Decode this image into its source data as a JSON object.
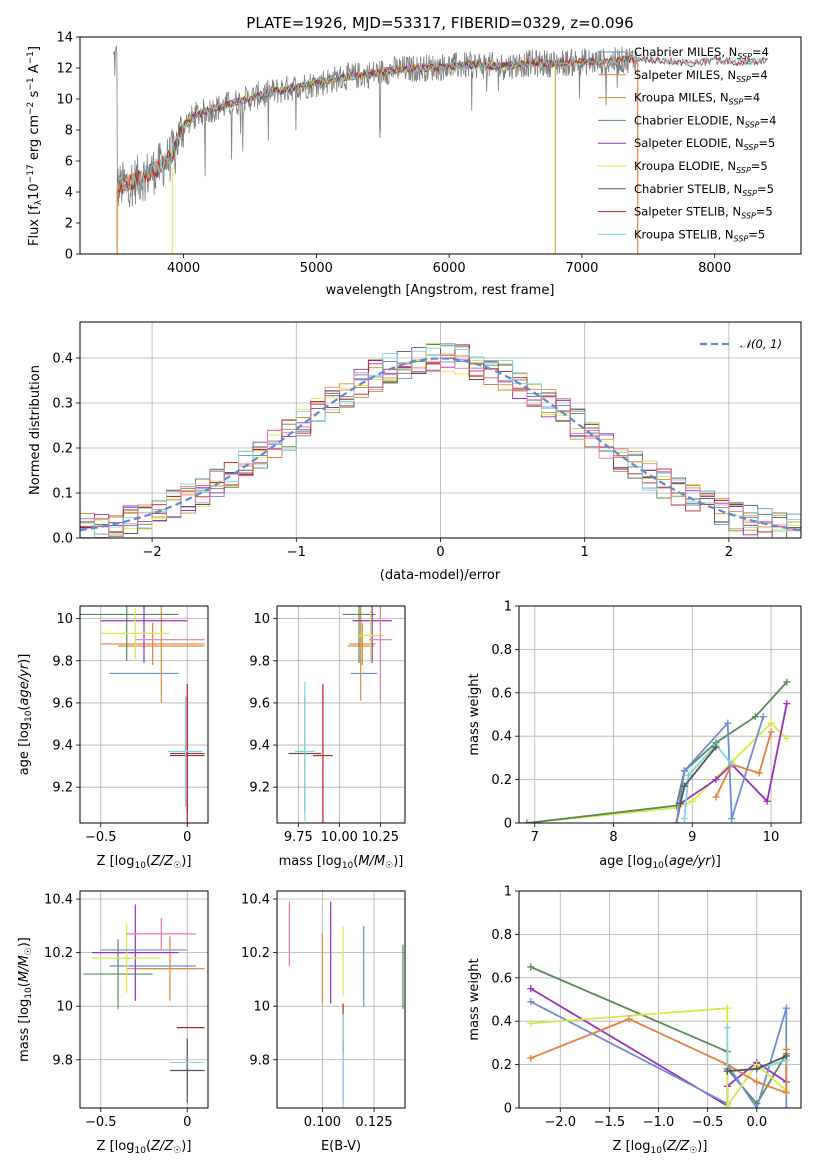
{
  "colors": {
    "Chabrier MILES": "#6b8fd8",
    "Salpeter MILES": "#e8803a",
    "Kroupa MILES": "#d4903c",
    "Chabrier ELODIE": "#5a8a5a",
    "Salpeter ELODIE": "#9b30c0",
    "Kroupa ELODIE": "#d9e84a",
    "Chabrier STELIB": "#555555",
    "Salpeter STELIB": "#c02020",
    "Kroupa STELIB": "#7fd6e0",
    "data": "#808080",
    "pink": "#e87aa8",
    "gauss": "#5b8bd4",
    "grid": "#b0b0b0"
  },
  "chart_data": [
    {
      "id": "spectrum",
      "type": "line",
      "title": "PLATE=1926, MJD=53317, FIBERID=0329, z=0.096",
      "xlabel": "wavelength [Angstrom, rest frame]",
      "ylabel": "Flux [f_λ10^-17 erg cm^-2 s^-1 A^-1]",
      "xlim": [
        3220,
        8650
      ],
      "ylim": [
        0,
        14
      ],
      "xticks": [
        4000,
        5000,
        6000,
        7000,
        8000
      ],
      "yticks": [
        0,
        2,
        4,
        6,
        8,
        10,
        12,
        14
      ],
      "grid": false,
      "legend_position": "right",
      "legend": [
        {
          "name": "Chabrier MILES",
          "label": "Chabrier MILES, N_SSP=4",
          "color": "#6b8fd8"
        },
        {
          "name": "Salpeter MILES",
          "label": "Salpeter MILES, N_SSP=4",
          "color": "#e8803a"
        },
        {
          "name": "Kroupa MILES",
          "label": "Kroupa MILES, N_SSP=4",
          "color": "#d4903c"
        },
        {
          "name": "Chabrier ELODIE",
          "label": "Chabrier ELODIE, N_SSP=4",
          "color": "#5a8a5a"
        },
        {
          "name": "Salpeter ELODIE",
          "label": "Salpeter ELODIE, N_SSP=5",
          "color": "#9b30c0"
        },
        {
          "name": "Kroupa ELODIE",
          "label": "Kroupa ELODIE, N_SSP=5",
          "color": "#d9e84a"
        },
        {
          "name": "Chabrier STELIB",
          "label": "Chabrier STELIB, N_SSP=5",
          "color": "#555555"
        },
        {
          "name": "Salpeter STELIB",
          "label": "Salpeter STELIB, N_SSP=5",
          "color": "#c02020"
        },
        {
          "name": "Kroupa STELIB",
          "label": "Kroupa STELIB, N_SSP=5",
          "color": "#7fd6e0"
        }
      ],
      "continuum": {
        "x": [
          3500,
          3600,
          3700,
          3800,
          3900,
          4000,
          4100,
          4200,
          4400,
          4600,
          4800,
          5000,
          5200,
          5400,
          5600,
          5800,
          6000,
          6200,
          6400,
          6600,
          6800,
          7000,
          7200,
          7400,
          7600,
          7800,
          8000,
          8200,
          8400
        ],
        "y": [
          4.3,
          4.6,
          5.0,
          5.5,
          6.2,
          8.3,
          9.0,
          9.3,
          9.8,
          10.3,
          10.7,
          11.0,
          11.4,
          11.6,
          11.9,
          12.0,
          12.1,
          12.2,
          12.1,
          12.3,
          12.3,
          12.4,
          12.4,
          12.6,
          12.5,
          12.3,
          12.5,
          12.4,
          12.5
        ]
      },
      "model_ranges": {
        "MILES": [
          3500,
          7400
        ],
        "ELODIE": [
          3900,
          6800
        ],
        "STELIB": [
          3500,
          8400
        ]
      }
    },
    {
      "id": "residual-histogram",
      "type": "histogram",
      "xlabel": "(data-model)/error",
      "ylabel": "Normed distribution",
      "xlim": [
        -2.5,
        2.5
      ],
      "ylim": [
        0,
        0.48
      ],
      "xticks": [
        -2,
        -1,
        0,
        1,
        2
      ],
      "yticks": [
        0.0,
        0.1,
        0.2,
        0.3,
        0.4
      ],
      "grid": true,
      "legend_position": "top-right",
      "legend": [
        {
          "label": "𝒩(0, 1)",
          "color": "#5b8bd4",
          "style": "dashed"
        }
      ],
      "bin_width": 0.1
    },
    {
      "id": "age-vs-Z",
      "type": "errorbar",
      "xlabel": "Z [log10(Z/Z☉)]",
      "ylabel": "age  [log10(age/yr)]",
      "xlim": [
        -0.62,
        0.12
      ],
      "ylim": [
        9.03,
        10.06
      ],
      "xticks": [
        -0.5,
        0.0
      ],
      "yticks": [
        9.2,
        9.4,
        9.6,
        9.8,
        10.0
      ],
      "grid": true,
      "points": [
        {
          "model": "Chabrier MILES",
          "x": -0.25,
          "y": 9.74,
          "xerr": 0.2,
          "yerr": 0.0
        },
        {
          "model": "Salpeter MILES",
          "x": -0.2,
          "y": 9.88,
          "xerr": 0.3,
          "yerr": 0.1
        },
        {
          "model": "Kroupa MILES",
          "x": -0.15,
          "y": 9.87,
          "xerr": 0.25,
          "yerr": 0.27
        },
        {
          "model": "Chabrier ELODIE",
          "x": -0.35,
          "y": 10.02,
          "xerr": 0.3,
          "yerr": 0.22
        },
        {
          "model": "Salpeter ELODIE",
          "x": -0.25,
          "y": 9.99,
          "xerr": 0.25,
          "yerr": 0.2
        },
        {
          "model": "Kroupa ELODIE",
          "x": -0.3,
          "y": 9.93,
          "xerr": 0.2,
          "yerr": 0.12
        },
        {
          "model": "Chabrier STELIB",
          "x": 0.0,
          "y": 9.36,
          "xerr": 0.1,
          "yerr": 0.28
        },
        {
          "model": "Salpeter STELIB",
          "x": 0.0,
          "y": 9.35,
          "xerr": 0.1,
          "yerr": 0.34
        },
        {
          "model": "Kroupa STELIB",
          "x": -0.01,
          "y": 9.37,
          "xerr": 0.1,
          "yerr": 0.26
        },
        {
          "model": "pink",
          "x": -0.1,
          "y": 9.9,
          "xerr": 0.2,
          "yerr": 0.0
        }
      ]
    },
    {
      "id": "age-vs-mass",
      "type": "errorbar",
      "xlabel": "mass [log10(M/M☉)]",
      "ylabel": "",
      "xlim": [
        9.62,
        10.4
      ],
      "ylim": [
        9.03,
        10.06
      ],
      "xticks": [
        9.75,
        10.0,
        10.25
      ],
      "xtick_labels": [
        "9.75",
        "10.00",
        "10.25"
      ],
      "yticks": [
        9.2,
        9.4,
        9.6,
        9.8,
        10.0
      ],
      "grid": true,
      "points": [
        {
          "model": "Chabrier MILES",
          "x": 10.15,
          "y": 9.74,
          "xerr": 0.08,
          "yerr": 0.0
        },
        {
          "model": "Salpeter MILES",
          "x": 10.14,
          "y": 9.88,
          "xerr": 0.08,
          "yerr": 0.1
        },
        {
          "model": "Kroupa MILES",
          "x": 10.13,
          "y": 9.87,
          "xerr": 0.08,
          "yerr": 0.26
        },
        {
          "model": "Chabrier ELODIE",
          "x": 10.12,
          "y": 10.02,
          "xerr": 0.1,
          "yerr": 0.23
        },
        {
          "model": "Salpeter ELODIE",
          "x": 10.2,
          "y": 9.99,
          "xerr": 0.12,
          "yerr": 0.2
        },
        {
          "model": "Kroupa ELODIE",
          "x": 10.19,
          "y": 9.92,
          "xerr": 0.08,
          "yerr": 0.12
        },
        {
          "model": "Chabrier STELIB",
          "x": 9.79,
          "y": 9.36,
          "xerr": 0.1,
          "yerr": 0.28
        },
        {
          "model": "Salpeter STELIB",
          "x": 9.9,
          "y": 9.35,
          "xerr": 0.06,
          "yerr": 0.34
        },
        {
          "model": "Kroupa STELIB",
          "x": 9.79,
          "y": 9.37,
          "xerr": 0.06,
          "yerr": 0.33
        },
        {
          "model": "pink",
          "x": 10.25,
          "y": 9.9,
          "xerr": 0.07,
          "yerr": 0.3
        }
      ]
    },
    {
      "id": "mass-weight-vs-age",
      "type": "line",
      "xlabel": "age  [log10(age/yr)]",
      "ylabel": "mass weight",
      "xlim": [
        6.8,
        10.38
      ],
      "ylim": [
        0,
        1.0
      ],
      "xticks": [
        7,
        8,
        9,
        10
      ],
      "yticks": [
        0.0,
        0.2,
        0.4,
        0.6,
        0.8,
        1.0
      ],
      "grid": true,
      "series": [
        {
          "model": "Kroupa ELODIE",
          "x": [
            6.9,
            8.8,
            9.0,
            9.5,
            10.0,
            10.2
          ],
          "y": [
            0.0,
            0.07,
            0.1,
            0.28,
            0.46,
            0.39
          ]
        },
        {
          "model": "Chabrier ELODIE",
          "x": [
            6.9,
            8.8,
            8.9,
            9.3,
            9.8,
            10.2
          ],
          "y": [
            0.0,
            0.08,
            0.24,
            0.37,
            0.49,
            0.65
          ]
        },
        {
          "model": "Salpeter ELODIE",
          "x": [
            8.8,
            8.85,
            9.3,
            9.5,
            9.95,
            10.2
          ],
          "y": [
            0.0,
            0.09,
            0.2,
            0.27,
            0.1,
            0.55
          ]
        },
        {
          "model": "Chabrier MILES",
          "x": [
            8.8,
            8.9,
            9.45,
            9.5,
            9.9
          ],
          "y": [
            0.0,
            0.24,
            0.46,
            0.02,
            0.49
          ]
        },
        {
          "model": "Salpeter MILES",
          "x": [
            9.3,
            9.5,
            9.85,
            10.0
          ],
          "y": [
            0.12,
            0.27,
            0.23,
            0.42
          ]
        },
        {
          "model": "Kroupa STELIB",
          "x": [
            8.9,
            8.95,
            9.3,
            9.5
          ],
          "y": [
            0.02,
            0.22,
            0.36,
            0.27
          ]
        },
        {
          "model": "Chabrier STELIB",
          "x": [
            8.85,
            8.9,
            9.3
          ],
          "y": [
            0.09,
            0.17,
            0.35
          ]
        }
      ]
    },
    {
      "id": "mass-vs-Z",
      "type": "errorbar",
      "xlabel": "Z [log10(Z/Z☉)]",
      "ylabel": "mass [log10(M/M☉)]",
      "xlim": [
        -0.62,
        0.12
      ],
      "ylim": [
        9.62,
        10.43
      ],
      "xticks": [
        -0.5,
        0.0
      ],
      "yticks": [
        9.8,
        10.0,
        10.2,
        10.4
      ],
      "grid": true,
      "points": [
        {
          "model": "Chabrier MILES",
          "x": -0.2,
          "y": 10.15,
          "xerr": 0.25,
          "yerr": 0.0
        },
        {
          "model": "Salpeter MILES",
          "x": -0.1,
          "y": 10.14,
          "xerr": 0.2,
          "yerr": 0.12
        },
        {
          "model": "Kroupa MILES",
          "x": -0.15,
          "y": 10.14,
          "xerr": 0.2,
          "yerr": 0.0
        },
        {
          "model": "Chabrier ELODIE",
          "x": -0.4,
          "y": 10.12,
          "xerr": 0.2,
          "yerr": 0.13
        },
        {
          "model": "Salpeter ELODIE",
          "x": -0.3,
          "y": 10.2,
          "xerr": 0.25,
          "yerr": 0.18
        },
        {
          "model": "Kroupa ELODIE",
          "x": -0.35,
          "y": 10.18,
          "xerr": 0.2,
          "yerr": 0.13
        },
        {
          "model": "Chabrier STELIB",
          "x": 0.0,
          "y": 9.76,
          "xerr": 0.1,
          "yerr": 0.12
        },
        {
          "model": "Salpeter STELIB",
          "x": 0.02,
          "y": 9.92,
          "xerr": 0.08,
          "yerr": 0.0
        },
        {
          "model": "Kroupa STELIB",
          "x": 0.0,
          "y": 9.79,
          "xerr": 0.1,
          "yerr": 0.0
        },
        {
          "model": "pink",
          "x": -0.15,
          "y": 10.27,
          "xerr": 0.2,
          "yerr": 0.06
        },
        {
          "model": "pink-blue",
          "x": -0.25,
          "y": 10.21,
          "xerr": 0.25,
          "yerr": 0.0
        }
      ]
    },
    {
      "id": "mass-vs-EBV",
      "type": "errorbar",
      "xlabel": "E(B-V)",
      "ylabel": "",
      "xlim": [
        0.078,
        0.14
      ],
      "ylim": [
        9.62,
        10.43
      ],
      "xticks": [
        0.1,
        0.125
      ],
      "xtick_labels": [
        "0.100",
        "0.125"
      ],
      "yticks": [
        9.8,
        10.0,
        10.2,
        10.4
      ],
      "grid": true,
      "points": [
        {
          "model": "pink",
          "x": 0.084,
          "y": 10.27,
          "yerr": 0.12
        },
        {
          "model": "Salpeter MILES",
          "x": 0.1,
          "y": 10.14,
          "yerr": 0.13
        },
        {
          "model": "Salpeter ELODIE",
          "x": 0.104,
          "y": 10.2,
          "yerr": 0.19
        },
        {
          "model": "Kroupa ELODIE",
          "x": 0.11,
          "y": 10.17,
          "yerr": 0.13
        },
        {
          "model": "Chabrier MILES",
          "x": 0.12,
          "y": 10.15,
          "yerr": 0.15
        },
        {
          "model": "Chabrier ELODIE",
          "x": 0.139,
          "y": 10.11,
          "yerr": 0.12
        },
        {
          "model": "Chabrier STELIB",
          "x": 0.11,
          "y": 9.76,
          "yerr": 0.12
        },
        {
          "model": "Salpeter STELIB",
          "x": 0.11,
          "y": 9.92,
          "yerr": 0.09
        },
        {
          "model": "Kroupa STELIB",
          "x": 0.11,
          "y": 9.79,
          "yerr": 0.18
        }
      ]
    },
    {
      "id": "mass-weight-vs-Z",
      "type": "line",
      "xlabel": "Z [log10(Z/Z☉)]",
      "ylabel": "mass weight",
      "xlim": [
        -2.42,
        0.45
      ],
      "ylim": [
        0,
        1.0
      ],
      "xticks": [
        -2.0,
        -1.5,
        -1.0,
        -0.5,
        0.0
      ],
      "xtick_labels": [
        "−2.0",
        "−1.5",
        "−1.0",
        "−0.5",
        "0.0"
      ],
      "yticks": [
        0.0,
        0.2,
        0.4,
        0.6,
        0.8,
        1.0
      ],
      "grid": true,
      "series": [
        {
          "model": "Chabrier ELODIE",
          "x": [
            -2.3,
            -0.3,
            -0.3,
            0.0,
            0.3
          ],
          "y": [
            0.65,
            0.26,
            0.18,
            0.02,
            0.25
          ]
        },
        {
          "model": "Salpeter ELODIE",
          "x": [
            -2.3,
            -0.3,
            -0.3,
            0.0,
            0.3
          ],
          "y": [
            0.55,
            0.01,
            0.1,
            0.21,
            0.12
          ]
        },
        {
          "model": "Chabrier MILES",
          "x": [
            -2.3,
            -0.3,
            -0.3,
            0.0,
            0.3,
            0.3
          ],
          "y": [
            0.49,
            0.02,
            0.2,
            0.0,
            0.46,
            0.0
          ]
        },
        {
          "model": "Kroupa ELODIE",
          "x": [
            -2.3,
            -0.3,
            -0.3,
            0.0,
            0.3
          ],
          "y": [
            0.39,
            0.46,
            0.01,
            0.2,
            0.08
          ]
        },
        {
          "model": "Salpeter MILES",
          "x": [
            -2.3,
            -1.3,
            -0.3,
            0.0,
            0.3,
            0.3
          ],
          "y": [
            0.23,
            0.41,
            0.2,
            0.12,
            0.07,
            0.27
          ]
        },
        {
          "model": "Kroupa STELIB",
          "x": [
            -0.3,
            -0.3,
            0.0,
            0.3
          ],
          "y": [
            0.37,
            0.17,
            0.18,
            0.22
          ]
        },
        {
          "model": "Chabrier STELIB",
          "x": [
            -0.3,
            0.0,
            0.3
          ],
          "y": [
            0.17,
            0.18,
            0.24
          ]
        }
      ]
    }
  ]
}
